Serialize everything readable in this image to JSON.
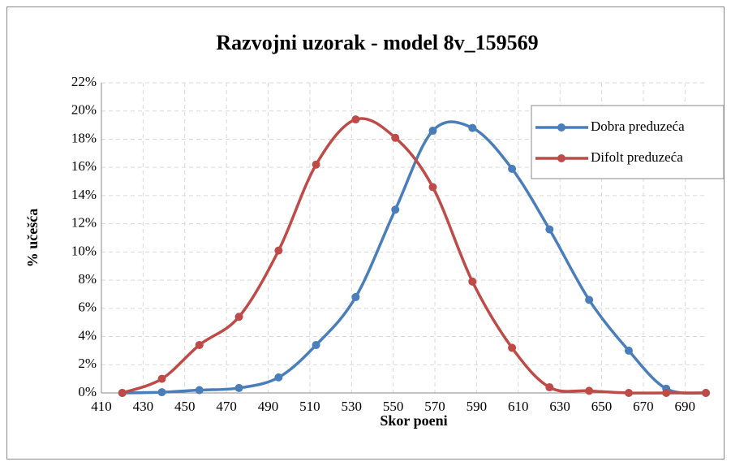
{
  "chart_data": {
    "type": "line",
    "title": "Razvojni uzorak - model 8v_159569",
    "x_label": "Skor poeni",
    "y_label": "% učešća",
    "x": [
      420,
      439,
      457,
      476,
      495,
      513,
      532,
      551,
      569,
      588,
      607,
      625,
      644,
      663,
      681,
      700
    ],
    "series": [
      {
        "name": "Dobra preduzeća",
        "color": "#4a7ebb",
        "values": [
          0,
          0.05,
          0.2,
          0.35,
          1.1,
          3.4,
          6.8,
          13.0,
          18.6,
          18.8,
          15.9,
          11.6,
          6.6,
          3.0,
          0.3,
          0
        ]
      },
      {
        "name": "Difolt preduzeća",
        "color": "#be4b48",
        "values": [
          0,
          1.0,
          3.4,
          5.4,
          10.1,
          16.2,
          19.4,
          18.1,
          14.6,
          7.9,
          3.2,
          0.4,
          0.15,
          0,
          0,
          0
        ]
      }
    ],
    "xlim": [
      410,
      700
    ],
    "xticks": [
      410,
      430,
      450,
      470,
      490,
      510,
      530,
      550,
      570,
      590,
      610,
      630,
      650,
      670,
      690
    ],
    "ylim": [
      0,
      22
    ],
    "yticks": [
      {
        "value": 0,
        "label": "0%"
      },
      {
        "value": 2,
        "label": "2%"
      },
      {
        "value": 4,
        "label": "4%"
      },
      {
        "value": 6,
        "label": "6%"
      },
      {
        "value": 8,
        "label": "8%"
      },
      {
        "value": 10,
        "label": "10%"
      },
      {
        "value": 12,
        "label": "12%"
      },
      {
        "value": 14,
        "label": "14%"
      },
      {
        "value": 16,
        "label": "16%"
      },
      {
        "value": 18,
        "label": "18%"
      },
      {
        "value": 20,
        "label": "20%"
      },
      {
        "value": 22,
        "label": "22%"
      }
    ],
    "grid": true,
    "smooth": true,
    "legend": "top-right"
  }
}
